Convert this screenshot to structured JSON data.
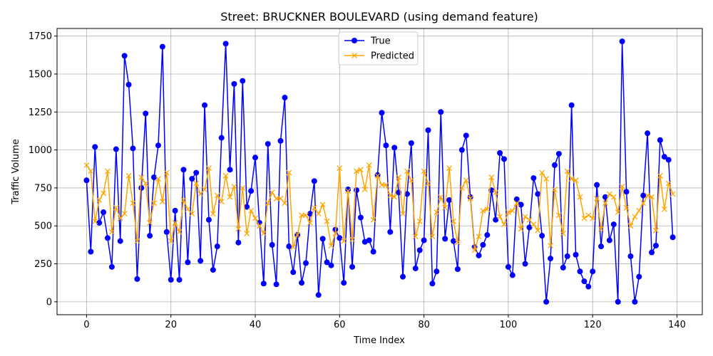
{
  "chart_data": {
    "type": "line",
    "title": "Street: BRUCKNER BOULEVARD (using demand feature)",
    "xlabel": "Time Index",
    "ylabel": "Traffic Volume",
    "xlim": [
      -7,
      146
    ],
    "ylim": [
      -85,
      1800
    ],
    "xticks": [
      0,
      20,
      40,
      60,
      80,
      100,
      120,
      140
    ],
    "yticks": [
      0,
      250,
      500,
      750,
      1000,
      1250,
      1500,
      1750
    ],
    "grid": true,
    "legend": "top-center",
    "series": [
      {
        "name": "True",
        "color": "#0000ff",
        "marker": "circle",
        "values": [
          800,
          330,
          1020,
          520,
          590,
          420,
          230,
          1005,
          400,
          1620,
          1430,
          1010,
          150,
          750,
          1240,
          435,
          820,
          1030,
          1680,
          460,
          145,
          600,
          145,
          870,
          260,
          810,
          850,
          270,
          1295,
          540,
          210,
          365,
          1080,
          1700,
          870,
          1435,
          390,
          1455,
          625,
          730,
          950,
          520,
          120,
          1040,
          375,
          115,
          1060,
          1345,
          365,
          195,
          440,
          125,
          255,
          580,
          795,
          45,
          415,
          260,
          240,
          475,
          420,
          125,
          740,
          230,
          735,
          555,
          395,
          405,
          330,
          835,
          1245,
          1030,
          460,
          1015,
          720,
          165,
          710,
          1045,
          220,
          340,
          405,
          1130,
          120,
          200,
          1250,
          415,
          670,
          400,
          215,
          1000,
          1095,
          690,
          360,
          305,
          375,
          440,
          735,
          540,
          980,
          940,
          230,
          175,
          675,
          640,
          250,
          490,
          815,
          710,
          435,
          0,
          285,
          900,
          975,
          225,
          300,
          1295,
          310,
          200,
          135,
          100,
          200,
          770,
          365,
          690,
          405,
          510,
          0,
          1715,
          725,
          300,
          0,
          165,
          700,
          1110,
          325,
          370,
          1065,
          955,
          935,
          425
        ]
      },
      {
        "name": "Predicted",
        "color": "#ffa500",
        "marker": "x",
        "values": [
          900,
          860,
          530,
          670,
          715,
          860,
          460,
          620,
          550,
          580,
          830,
          650,
          400,
          820,
          780,
          520,
          650,
          810,
          660,
          850,
          400,
          520,
          460,
          670,
          610,
          580,
          780,
          710,
          740,
          880,
          580,
          700,
          660,
          830,
          690,
          760,
          480,
          750,
          450,
          600,
          550,
          500,
          450,
          650,
          720,
          680,
          680,
          650,
          850,
          360,
          440,
          570,
          570,
          520,
          620,
          580,
          640,
          530,
          370,
          450,
          880,
          400,
          730,
          410,
          860,
          870,
          740,
          900,
          540,
          830,
          770,
          770,
          700,
          690,
          820,
          580,
          860,
          800,
          430,
          530,
          860,
          780,
          430,
          590,
          690,
          620,
          880,
          530,
          390,
          750,
          800,
          680,
          340,
          430,
          600,
          610,
          820,
          720,
          560,
          510,
          590,
          600,
          650,
          480,
          560,
          540,
          510,
          470,
          850,
          810,
          370,
          740,
          570,
          450,
          860,
          810,
          800,
          690,
          550,
          570,
          550,
          680,
          480,
          650,
          710,
          690,
          590,
          760,
          620,
          500,
          560,
          600,
          650,
          700,
          690,
          470,
          830,
          610,
          780,
          710
        ]
      }
    ]
  }
}
